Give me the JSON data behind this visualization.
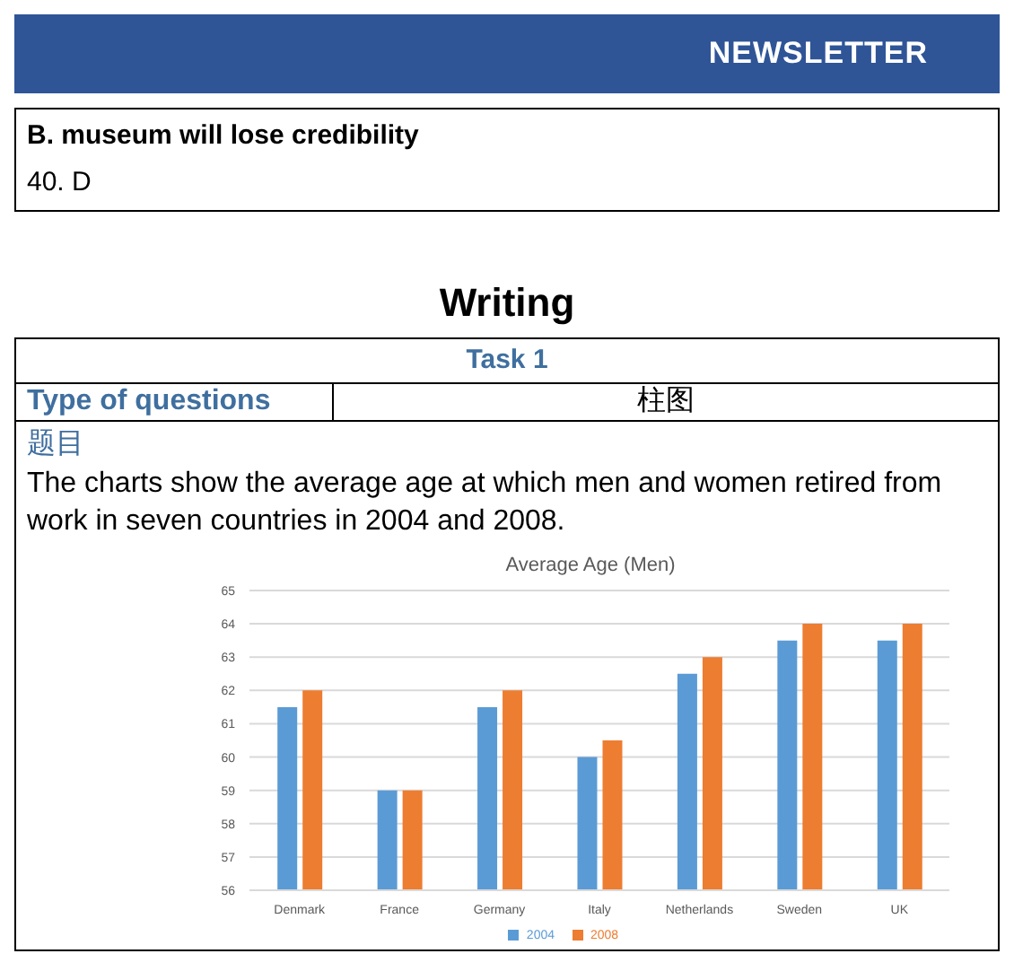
{
  "chart_data": {
    "type": "bar",
    "title": "Average Age (Men)",
    "annotations": [
      "NEWSLETTER",
      "B. museum will lose credibility",
      "40. D",
      "Writing",
      "Task 1",
      "Type of questions",
      "柱图",
      "题目",
      "The charts show the average age at which men and women retired from work in seven countries in 2004 and 2008."
    ],
    "categories": [
      "Denmark",
      "France",
      "Germany",
      "Italy",
      "Netherlands",
      "Sweden",
      "UK"
    ],
    "series": [
      {
        "name": "2004",
        "color": "#5b9bd5",
        "values": [
          61.5,
          59,
          61.5,
          60,
          62.5,
          63.5,
          63.5
        ]
      },
      {
        "name": "2008",
        "color": "#ed7d31",
        "values": [
          62,
          59,
          62,
          60.5,
          63,
          64,
          64
        ]
      }
    ],
    "ylim": [
      56,
      65
    ],
    "yticks": [
      56,
      57,
      58,
      59,
      60,
      61,
      62,
      63,
      64,
      65
    ],
    "grid": "y",
    "legend": "bottom"
  }
}
